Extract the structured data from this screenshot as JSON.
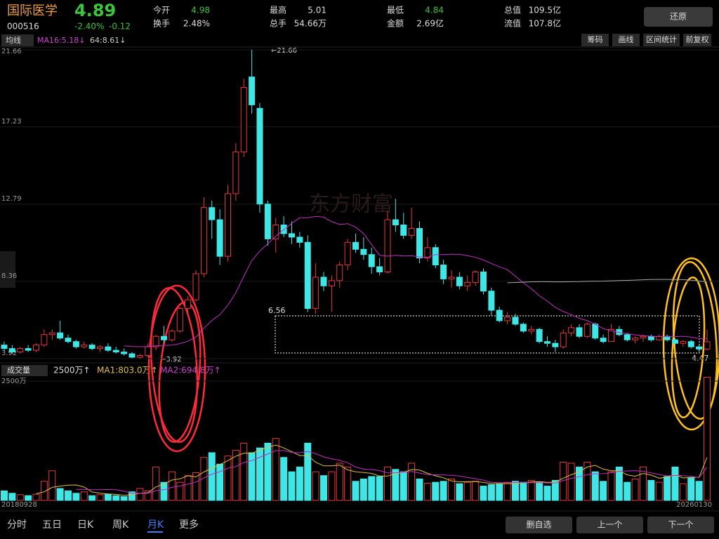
{
  "header": {
    "name": "国际医学",
    "price": "4.89",
    "code": "000516",
    "change_pct": "-2.40%",
    "change": "-0.12",
    "button": "还原"
  },
  "stats": [
    {
      "label": "今开",
      "value": "4.98"
    },
    {
      "label": "换手",
      "value": "2.48%"
    },
    {
      "label": "最高",
      "value": "5.01"
    },
    {
      "label": "总手",
      "value": "54.66万"
    },
    {
      "label": "最低",
      "value": "4.84"
    },
    {
      "label": "金额",
      "value": "2.69亿"
    },
    {
      "label": "总值",
      "value": "109.5亿"
    },
    {
      "label": "流值",
      "value": "107.8亿"
    }
  ],
  "toolbar": {
    "indicator": "均线",
    "ma16": "MA16:5.18↓",
    "ma64": "64:8.61↓",
    "buttons": [
      "筹码",
      "画线",
      "区间统计",
      "前复权"
    ]
  },
  "chart_data": {
    "type": "candlestick",
    "watermark": "东方财富",
    "categories": [
      "20180928",
      null,
      null,
      null,
      null,
      null,
      null,
      null,
      null,
      null,
      null,
      null,
      null,
      null,
      null,
      null,
      null,
      null,
      null,
      null,
      null,
      null,
      null,
      null,
      null,
      null,
      null,
      null,
      null,
      null,
      null,
      null,
      null,
      null,
      null,
      null,
      null,
      null,
      null,
      null,
      null,
      null,
      null,
      null,
      null,
      null,
      null,
      null,
      null,
      null,
      null,
      null,
      null,
      null,
      null,
      null,
      null,
      null,
      null,
      null,
      null,
      null,
      null,
      null,
      null,
      null,
      null,
      null,
      null,
      null,
      null,
      null,
      null,
      null,
      null,
      null,
      null,
      null,
      null,
      null,
      null,
      null,
      null,
      null,
      null,
      null,
      null,
      null,
      "20260130"
    ],
    "ylim": [
      3.92,
      21.66
    ],
    "yticks": [
      21.66,
      17.23,
      12.79,
      8.36,
      3.92
    ],
    "annotations": {
      "high": "←21.66",
      "low": "←3.92",
      "level": "6.56",
      "last": "4.47"
    },
    "up_color": "#e8383d",
    "down_color": "#3ee6e6",
    "candles": [
      [
        4.7,
        4.9,
        4.4,
        4.5
      ],
      [
        4.5,
        4.7,
        4.2,
        4.3
      ],
      [
        4.3,
        4.6,
        4.2,
        4.5
      ],
      [
        4.5,
        4.7,
        4.3,
        4.4
      ],
      [
        4.4,
        4.8,
        4.3,
        4.7
      ],
      [
        4.7,
        5.6,
        4.6,
        5.3
      ],
      [
        5.3,
        5.6,
        5.0,
        5.4
      ],
      [
        5.4,
        6.1,
        5.0,
        5.1
      ],
      [
        5.1,
        5.3,
        4.8,
        4.9
      ],
      [
        4.9,
        5.0,
        4.5,
        4.6
      ],
      [
        4.6,
        4.9,
        4.5,
        4.7
      ],
      [
        4.7,
        4.8,
        4.4,
        4.5
      ],
      [
        4.5,
        4.7,
        4.3,
        4.6
      ],
      [
        4.6,
        4.8,
        4.3,
        4.4
      ],
      [
        4.4,
        4.6,
        4.2,
        4.3
      ],
      [
        4.3,
        4.5,
        4.1,
        4.2
      ],
      [
        4.2,
        4.3,
        3.95,
        4.0
      ],
      [
        4.0,
        4.2,
        3.92,
        4.1
      ],
      [
        4.1,
        4.8,
        4.0,
        4.6
      ],
      [
        4.6,
        5.3,
        4.4,
        5.2
      ],
      [
        5.2,
        5.8,
        4.8,
        5.0
      ],
      [
        5.0,
        5.6,
        4.9,
        5.5
      ],
      [
        5.5,
        6.9,
        5.4,
        6.8
      ],
      [
        6.8,
        7.5,
        6.6,
        7.3
      ],
      [
        7.3,
        9.0,
        7.2,
        8.8
      ],
      [
        8.8,
        13.2,
        8.6,
        12.6
      ],
      [
        12.6,
        13.0,
        10.8,
        11.9
      ],
      [
        11.9,
        12.5,
        9.3,
        9.8
      ],
      [
        9.8,
        13.9,
        9.5,
        13.4
      ],
      [
        13.4,
        16.3,
        13.0,
        15.8
      ],
      [
        15.8,
        20.0,
        15.5,
        19.5
      ],
      [
        20.1,
        21.66,
        18.0,
        18.5
      ],
      [
        18.3,
        18.6,
        12.3,
        12.8
      ],
      [
        12.8,
        13.0,
        10.4,
        10.8
      ],
      [
        10.8,
        12.0,
        10.0,
        11.6
      ],
      [
        11.6,
        12.1,
        10.9,
        11.1
      ],
      [
        11.1,
        11.8,
        10.5,
        10.9
      ],
      [
        10.9,
        11.2,
        10.3,
        10.6
      ],
      [
        10.6,
        11.0,
        6.6,
        6.8
      ],
      [
        6.8,
        9.4,
        6.5,
        8.6
      ],
      [
        8.6,
        8.9,
        7.8,
        8.1
      ],
      [
        8.1,
        8.7,
        6.6,
        8.4
      ],
      [
        8.4,
        9.5,
        8.0,
        9.3
      ],
      [
        9.3,
        10.8,
        9.0,
        10.6
      ],
      [
        10.6,
        11.1,
        10.0,
        10.2
      ],
      [
        10.2,
        10.9,
        9.6,
        9.9
      ],
      [
        9.9,
        10.3,
        8.8,
        9.2
      ],
      [
        9.2,
        9.7,
        8.7,
        8.9
      ],
      [
        8.9,
        12.4,
        8.8,
        11.9
      ],
      [
        11.9,
        13.1,
        11.2,
        11.6
      ],
      [
        11.6,
        12.3,
        10.8,
        11.0
      ],
      [
        11.0,
        12.6,
        10.8,
        11.4
      ],
      [
        11.4,
        11.8,
        9.4,
        9.7
      ],
      [
        9.7,
        10.9,
        9.5,
        10.3
      ],
      [
        10.3,
        10.5,
        9.1,
        9.3
      ],
      [
        9.3,
        9.6,
        8.2,
        8.5
      ],
      [
        8.5,
        9.0,
        8.0,
        8.6
      ],
      [
        8.6,
        8.9,
        7.9,
        8.1
      ],
      [
        8.1,
        8.7,
        7.8,
        8.3
      ],
      [
        8.3,
        9.0,
        8.1,
        8.9
      ],
      [
        8.9,
        9.1,
        7.6,
        7.8
      ],
      [
        7.8,
        8.0,
        6.4,
        6.7
      ],
      [
        6.7,
        6.9,
        6.0,
        6.1
      ],
      [
        6.1,
        6.6,
        5.9,
        6.3
      ],
      [
        6.3,
        6.5,
        5.8,
        5.9
      ],
      [
        5.9,
        6.0,
        5.4,
        5.5
      ],
      [
        5.5,
        5.8,
        5.3,
        5.6
      ],
      [
        5.6,
        5.7,
        4.8,
        4.9
      ],
      [
        4.9,
        5.2,
        4.6,
        4.8
      ],
      [
        4.8,
        5.0,
        4.3,
        4.6
      ],
      [
        4.6,
        5.6,
        4.5,
        5.4
      ],
      [
        5.4,
        5.9,
        5.2,
        5.7
      ],
      [
        5.7,
        5.9,
        5.1,
        5.2
      ],
      [
        5.2,
        6.0,
        5.1,
        5.9
      ],
      [
        5.9,
        6.0,
        5.0,
        5.1
      ],
      [
        5.1,
        5.3,
        4.8,
        4.9
      ],
      [
        4.9,
        5.9,
        4.9,
        5.6
      ],
      [
        5.6,
        5.8,
        5.2,
        5.3
      ],
      [
        5.3,
        5.4,
        4.9,
        5.0
      ],
      [
        5.0,
        5.2,
        4.8,
        5.1
      ],
      [
        5.1,
        5.3,
        4.9,
        5.2
      ],
      [
        5.2,
        5.3,
        4.9,
        5.0
      ],
      [
        5.0,
        5.3,
        4.95,
        5.2
      ],
      [
        5.2,
        5.3,
        4.9,
        5.0
      ],
      [
        5.0,
        5.1,
        4.7,
        4.8
      ],
      [
        4.8,
        5.0,
        4.6,
        4.9
      ],
      [
        4.9,
        5.0,
        4.5,
        4.6
      ],
      [
        4.6,
        4.7,
        4.3,
        4.47
      ],
      [
        4.47,
        5.6,
        4.4,
        4.89
      ]
    ],
    "volume": {
      "indicator": "成交量",
      "scale": "2500万↑",
      "ma1": "MA1:803.0万↑",
      "ma2": "MA2:694.8万↑",
      "ylim": [
        0,
        2500
      ],
      "yticks": [
        {
          "value": 2500,
          "label": "2500万"
        }
      ],
      "values": [
        200,
        150,
        120,
        100,
        130,
        400,
        620,
        250,
        200,
        150,
        180,
        100,
        120,
        130,
        100,
        80,
        180,
        250,
        200,
        700,
        380,
        600,
        380,
        520,
        580,
        900,
        1000,
        760,
        930,
        1050,
        1200,
        1000,
        1100,
        1200,
        1300,
        900,
        600,
        700,
        1200,
        600,
        520,
        600,
        780,
        700,
        400,
        450,
        500,
        500,
        700,
        650,
        600,
        780,
        450,
        360,
        380,
        400,
        450,
        350,
        380,
        400,
        300,
        330,
        350,
        380,
        400,
        380,
        420,
        390,
        300,
        420,
        800,
        780,
        700,
        800,
        600,
        400,
        600,
        700,
        380,
        450,
        700,
        420,
        380,
        500,
        700,
        350,
        480,
        400,
        2580
      ]
    }
  },
  "tabs": {
    "items": [
      "分时",
      "五日",
      "日K",
      "周K",
      "月K",
      "更多"
    ],
    "active": 4
  },
  "actions": [
    "删自选",
    "上一个",
    "下一个"
  ]
}
